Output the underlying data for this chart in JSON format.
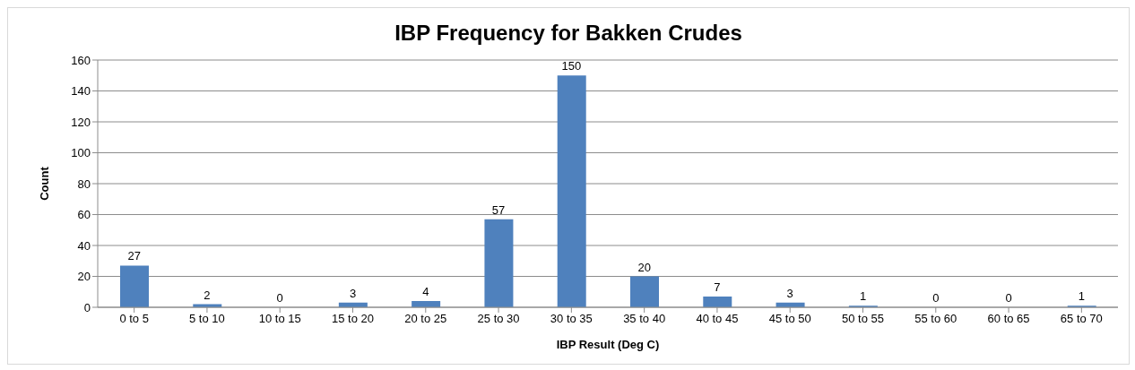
{
  "chart_data": {
    "type": "bar",
    "title": "IBP Frequency for Bakken Crudes",
    "xlabel": "IBP Result (Deg C)",
    "ylabel": "Count",
    "categories": [
      "0 to 5",
      "5 to 10",
      "10 to 15",
      "15 to 20",
      "20 to 25",
      "25 to 30",
      "30 to 35",
      "35 to 40",
      "40 to 45",
      "45 to 50",
      "50 to 55",
      "55 to 60",
      "60 to 65",
      "65 to 70"
    ],
    "values": [
      27,
      2,
      0,
      3,
      4,
      57,
      150,
      20,
      7,
      3,
      1,
      0,
      0,
      1
    ],
    "color": "#4f81bd",
    "ylim": [
      0,
      160
    ],
    "yticks": [
      0,
      20,
      40,
      60,
      80,
      100,
      120,
      140,
      160
    ],
    "grid": "y",
    "data_labels": true
  }
}
